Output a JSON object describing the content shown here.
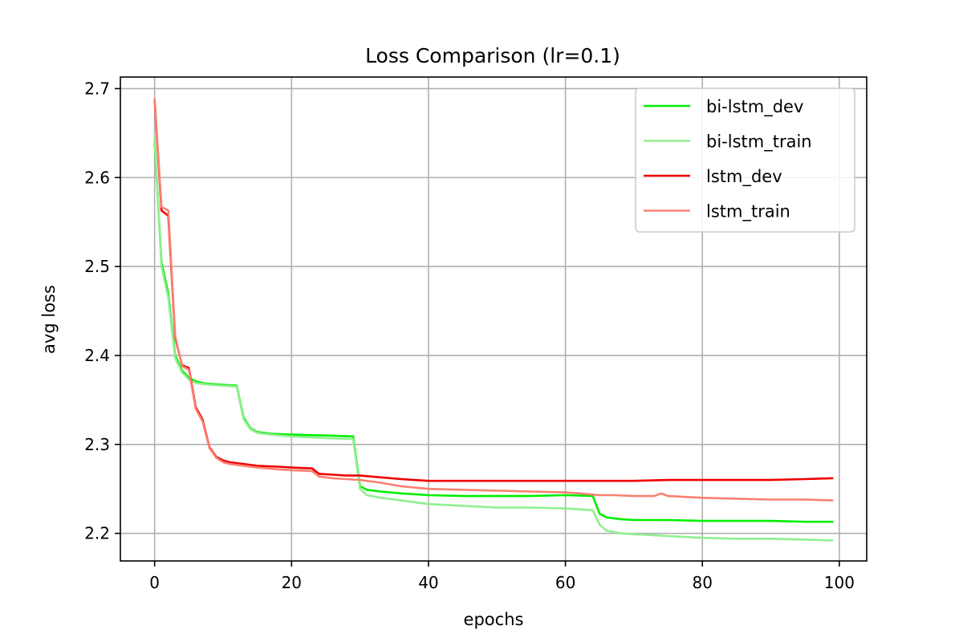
{
  "chart_data": {
    "type": "line",
    "title": "Loss Comparison (lr=0.1)",
    "xlabel": "epochs",
    "ylabel": "avg loss",
    "xlim": [
      -5,
      104
    ],
    "ylim": [
      2.169,
      2.713
    ],
    "xticks": [
      0,
      20,
      40,
      60,
      80,
      100
    ],
    "yticks": [
      2.2,
      2.3,
      2.4,
      2.5,
      2.6,
      2.7
    ],
    "xtick_labels": [
      "0",
      "20",
      "40",
      "60",
      "80",
      "100"
    ],
    "ytick_labels": [
      "2.2",
      "2.3",
      "2.4",
      "2.5",
      "2.6",
      "2.7"
    ],
    "grid": true,
    "legend_position": "top-right",
    "series": [
      {
        "name": "bi-lstm_dev",
        "color": "#00ee00",
        "points": [
          [
            0,
            2.64
          ],
          [
            1,
            2.505
          ],
          [
            2,
            2.47
          ],
          [
            3,
            2.4
          ],
          [
            4,
            2.383
          ],
          [
            5,
            2.375
          ],
          [
            6,
            2.371
          ],
          [
            7,
            2.369
          ],
          [
            8,
            2.368
          ],
          [
            10,
            2.367
          ],
          [
            12,
            2.366
          ],
          [
            13,
            2.33
          ],
          [
            14,
            2.318
          ],
          [
            15,
            2.314
          ],
          [
            17,
            2.312
          ],
          [
            20,
            2.311
          ],
          [
            25,
            2.31
          ],
          [
            29,
            2.309
          ],
          [
            30,
            2.253
          ],
          [
            31,
            2.249
          ],
          [
            33,
            2.247
          ],
          [
            36,
            2.245
          ],
          [
            40,
            2.243
          ],
          [
            45,
            2.242
          ],
          [
            50,
            2.242
          ],
          [
            55,
            2.242
          ],
          [
            60,
            2.243
          ],
          [
            64,
            2.242
          ],
          [
            65,
            2.222
          ],
          [
            66,
            2.218
          ],
          [
            68,
            2.216
          ],
          [
            70,
            2.215
          ],
          [
            75,
            2.215
          ],
          [
            80,
            2.214
          ],
          [
            85,
            2.214
          ],
          [
            90,
            2.214
          ],
          [
            95,
            2.213
          ],
          [
            99,
            2.213
          ]
        ]
      },
      {
        "name": "bi-lstm_train",
        "color": "#90ee90",
        "points": [
          [
            0,
            2.645
          ],
          [
            1,
            2.5
          ],
          [
            2,
            2.465
          ],
          [
            3,
            2.397
          ],
          [
            4,
            2.381
          ],
          [
            5,
            2.373
          ],
          [
            6,
            2.369
          ],
          [
            7,
            2.368
          ],
          [
            8,
            2.367
          ],
          [
            10,
            2.366
          ],
          [
            12,
            2.365
          ],
          [
            13,
            2.328
          ],
          [
            14,
            2.317
          ],
          [
            15,
            2.313
          ],
          [
            17,
            2.311
          ],
          [
            20,
            2.309
          ],
          [
            25,
            2.307
          ],
          [
            29,
            2.306
          ],
          [
            30,
            2.25
          ],
          [
            31,
            2.243
          ],
          [
            33,
            2.24
          ],
          [
            36,
            2.237
          ],
          [
            40,
            2.233
          ],
          [
            45,
            2.231
          ],
          [
            50,
            2.229
          ],
          [
            55,
            2.229
          ],
          [
            60,
            2.228
          ],
          [
            64,
            2.226
          ],
          [
            65,
            2.21
          ],
          [
            66,
            2.203
          ],
          [
            68,
            2.2
          ],
          [
            70,
            2.199
          ],
          [
            75,
            2.197
          ],
          [
            80,
            2.195
          ],
          [
            85,
            2.194
          ],
          [
            90,
            2.194
          ],
          [
            95,
            2.193
          ],
          [
            99,
            2.192
          ]
        ]
      },
      {
        "name": "lstm_dev",
        "color": "#ee0000",
        "points": [
          [
            0,
            2.687
          ],
          [
            1,
            2.563
          ],
          [
            2,
            2.557
          ],
          [
            3,
            2.42
          ],
          [
            4,
            2.389
          ],
          [
            5,
            2.386
          ],
          [
            6,
            2.342
          ],
          [
            7,
            2.328
          ],
          [
            8,
            2.297
          ],
          [
            9,
            2.286
          ],
          [
            10,
            2.282
          ],
          [
            11,
            2.28
          ],
          [
            13,
            2.278
          ],
          [
            15,
            2.276
          ],
          [
            18,
            2.275
          ],
          [
            20,
            2.274
          ],
          [
            23,
            2.273
          ],
          [
            24,
            2.267
          ],
          [
            26,
            2.266
          ],
          [
            28,
            2.265
          ],
          [
            30,
            2.265
          ],
          [
            33,
            2.263
          ],
          [
            36,
            2.261
          ],
          [
            40,
            2.259
          ],
          [
            45,
            2.259
          ],
          [
            50,
            2.259
          ],
          [
            55,
            2.259
          ],
          [
            60,
            2.259
          ],
          [
            65,
            2.259
          ],
          [
            70,
            2.259
          ],
          [
            75,
            2.26
          ],
          [
            80,
            2.26
          ],
          [
            85,
            2.26
          ],
          [
            90,
            2.26
          ],
          [
            95,
            2.261
          ],
          [
            99,
            2.262
          ]
        ]
      },
      {
        "name": "lstm_train",
        "color": "#fa8072",
        "points": [
          [
            0,
            2.688
          ],
          [
            1,
            2.567
          ],
          [
            2,
            2.563
          ],
          [
            3,
            2.422
          ],
          [
            4,
            2.388
          ],
          [
            5,
            2.384
          ],
          [
            6,
            2.34
          ],
          [
            7,
            2.326
          ],
          [
            8,
            2.296
          ],
          [
            9,
            2.285
          ],
          [
            10,
            2.28
          ],
          [
            11,
            2.278
          ],
          [
            13,
            2.276
          ],
          [
            15,
            2.274
          ],
          [
            18,
            2.272
          ],
          [
            20,
            2.271
          ],
          [
            23,
            2.27
          ],
          [
            24,
            2.264
          ],
          [
            26,
            2.262
          ],
          [
            28,
            2.261
          ],
          [
            30,
            2.26
          ],
          [
            33,
            2.257
          ],
          [
            36,
            2.253
          ],
          [
            40,
            2.25
          ],
          [
            45,
            2.249
          ],
          [
            50,
            2.248
          ],
          [
            55,
            2.247
          ],
          [
            60,
            2.246
          ],
          [
            62,
            2.245
          ],
          [
            65,
            2.243
          ],
          [
            67,
            2.243
          ],
          [
            70,
            2.242
          ],
          [
            73,
            2.242
          ],
          [
            74,
            2.245
          ],
          [
            75,
            2.242
          ],
          [
            80,
            2.24
          ],
          [
            85,
            2.239
          ],
          [
            90,
            2.238
          ],
          [
            95,
            2.238
          ],
          [
            99,
            2.237
          ]
        ]
      }
    ]
  }
}
